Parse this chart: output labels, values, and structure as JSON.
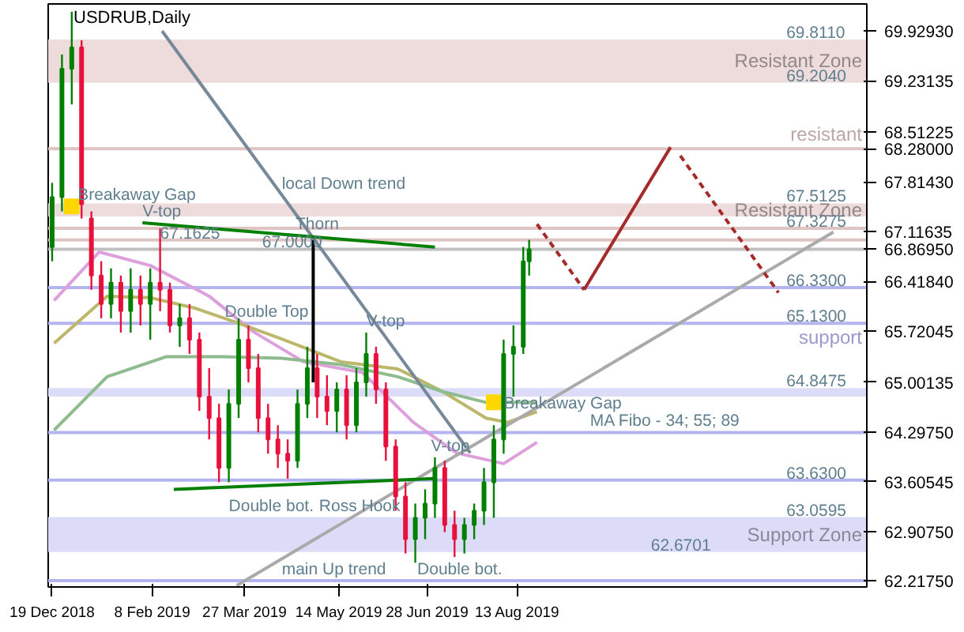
{
  "chart_data": {
    "type": "candlestick",
    "title": "USDRUB,Daily",
    "x": [
      "2018-12-19",
      "2018-12-24",
      "2018-12-29",
      "2019-01-03",
      "2019-01-08",
      "2019-01-13",
      "2019-01-18",
      "2019-01-23",
      "2019-01-28",
      "2019-02-02",
      "2019-02-07",
      "2019-02-12",
      "2019-02-17",
      "2019-02-22",
      "2019-02-27",
      "2019-03-04",
      "2019-03-09",
      "2019-03-14",
      "2019-03-19",
      "2019-03-24",
      "2019-03-29",
      "2019-04-03",
      "2019-04-08",
      "2019-04-13",
      "2019-04-18",
      "2019-04-23",
      "2019-04-28",
      "2019-05-03",
      "2019-05-08",
      "2019-05-13",
      "2019-05-18",
      "2019-05-23",
      "2019-05-28",
      "2019-06-02",
      "2019-06-07",
      "2019-06-12",
      "2019-06-17",
      "2019-06-22",
      "2019-06-27",
      "2019-07-02",
      "2019-07-07",
      "2019-07-12",
      "2019-07-17",
      "2019-07-22",
      "2019-07-27",
      "2019-08-01",
      "2019-08-06",
      "2019-08-11",
      "2019-08-16",
      "2019-08-19"
    ],
    "ohlc": [
      [
        66.9,
        67.8,
        66.7,
        67.6
      ],
      [
        67.6,
        69.6,
        67.4,
        69.4
      ],
      [
        69.4,
        70.2,
        68.9,
        69.7
      ],
      [
        69.7,
        69.8,
        67.3,
        67.5
      ],
      [
        67.3,
        67.4,
        66.3,
        66.5
      ],
      [
        66.5,
        66.7,
        65.9,
        66.1
      ],
      [
        66.1,
        66.6,
        65.9,
        66.4
      ],
      [
        66.4,
        66.5,
        65.7,
        66.0
      ],
      [
        66.0,
        66.6,
        65.7,
        66.3
      ],
      [
        66.3,
        66.5,
        65.8,
        66.1
      ],
      [
        66.1,
        66.6,
        65.6,
        66.4
      ],
      [
        66.4,
        67.16,
        66.0,
        66.3
      ],
      [
        66.3,
        66.4,
        65.7,
        65.8
      ],
      [
        65.8,
        66.1,
        65.5,
        65.9
      ],
      [
        65.9,
        66.1,
        65.4,
        65.6
      ],
      [
        65.6,
        65.7,
        64.6,
        64.8
      ],
      [
        64.8,
        65.2,
        64.2,
        64.5
      ],
      [
        64.5,
        64.7,
        63.6,
        63.8
      ],
      [
        63.8,
        64.9,
        63.6,
        64.7
      ],
      [
        64.7,
        65.9,
        64.5,
        65.6
      ],
      [
        65.6,
        65.8,
        65.0,
        65.2
      ],
      [
        65.2,
        65.4,
        64.3,
        64.5
      ],
      [
        64.5,
        64.7,
        64.0,
        64.2
      ],
      [
        64.2,
        64.4,
        63.8,
        64.0
      ],
      [
        64.0,
        64.2,
        63.65,
        63.9
      ],
      [
        63.9,
        64.9,
        63.8,
        64.7
      ],
      [
        64.7,
        65.5,
        64.5,
        65.2
      ],
      [
        65.2,
        65.4,
        64.5,
        64.8
      ],
      [
        64.8,
        65.1,
        64.4,
        64.6
      ],
      [
        64.6,
        65.0,
        64.3,
        64.9
      ],
      [
        64.9,
        65.1,
        64.2,
        64.4
      ],
      [
        64.4,
        65.2,
        64.3,
        65.0
      ],
      [
        65.0,
        65.7,
        64.8,
        65.4
      ],
      [
        65.4,
        65.5,
        64.7,
        64.9
      ],
      [
        64.9,
        65.0,
        63.9,
        64.1
      ],
      [
        64.1,
        64.2,
        63.2,
        63.4
      ],
      [
        63.4,
        63.6,
        62.6,
        62.8
      ],
      [
        62.8,
        63.3,
        62.47,
        63.1
      ],
      [
        63.1,
        63.5,
        62.8,
        63.3
      ],
      [
        63.3,
        63.95,
        63.1,
        63.8
      ],
      [
        63.8,
        63.9,
        62.9,
        63.0
      ],
      [
        63.0,
        63.2,
        62.55,
        62.8
      ],
      [
        62.8,
        63.1,
        62.6,
        63.0
      ],
      [
        63.0,
        63.3,
        62.8,
        63.2
      ],
      [
        63.2,
        63.8,
        63.0,
        63.6
      ],
      [
        63.6,
        64.4,
        63.1,
        64.2
      ],
      [
        64.2,
        65.6,
        64.0,
        65.4
      ],
      [
        65.4,
        65.8,
        64.8,
        65.5
      ],
      [
        65.5,
        66.9,
        65.4,
        66.7
      ],
      [
        66.7,
        67.0,
        66.5,
        66.8695
      ]
    ],
    "series": [
      {
        "type": "line",
        "color": "#dda0dd",
        "x": [
          "2018-12-20",
          "2019-01-12",
          "2019-02-07",
          "2019-03-09",
          "2019-03-31",
          "2019-04-26",
          "2019-05-26",
          "2019-06-21",
          "2019-07-13",
          "2019-08-06",
          "2019-08-23"
        ],
        "values": [
          66.15,
          66.83,
          66.64,
          66.21,
          65.72,
          65.29,
          65.14,
          64.44,
          64.01,
          63.86,
          64.16
        ]
      },
      {
        "type": "line",
        "color": "#bdb76b",
        "x": [
          "2018-12-20",
          "2019-01-16",
          "2019-02-07",
          "2019-03-02",
          "2019-03-24",
          "2019-04-15",
          "2019-05-15",
          "2019-06-13",
          "2019-07-06",
          "2019-07-28",
          "2019-08-08",
          "2019-08-23"
        ],
        "values": [
          65.55,
          66.21,
          66.19,
          66.04,
          65.83,
          65.61,
          65.29,
          65.19,
          64.87,
          64.5,
          64.44,
          64.59
        ]
      },
      {
        "type": "line",
        "color": "#8fbc8f",
        "x": [
          "2018-12-20",
          "2019-01-16",
          "2019-02-15",
          "2019-03-16",
          "2019-04-15",
          "2019-05-15",
          "2019-06-13",
          "2019-07-06",
          "2019-07-28",
          "2019-08-23"
        ],
        "values": [
          64.33,
          65.08,
          65.36,
          65.36,
          65.34,
          65.25,
          65.08,
          64.87,
          64.72,
          64.72
        ]
      },
      {
        "type": "line",
        "color": "#778899",
        "x": [
          "2019-02-13",
          "2019-07-20"
        ],
        "values": [
          69.93,
          64.01
        ]
      },
      {
        "type": "line",
        "color": "#aaaaaa",
        "x": [
          "2019-03-23",
          "2020-01-21"
        ],
        "values": [
          62.15,
          67.11
        ]
      },
      {
        "type": "line",
        "color": "#008000",
        "x": [
          "2019-02-03",
          "2019-07-02"
        ],
        "values": [
          67.24,
          66.9
        ]
      },
      {
        "type": "line",
        "color": "#008000",
        "x": [
          "2019-02-19",
          "2019-07-02"
        ],
        "values": [
          63.5,
          63.65
        ]
      },
      {
        "type": "line",
        "color": "#000000",
        "x": [
          "2019-05-01",
          "2019-05-01"
        ],
        "values": [
          67.0,
          65.0
        ]
      },
      {
        "type": "line",
        "color": "#a52a2a",
        "line_style": "dashed",
        "x": [
          "2019-08-23",
          "2019-09-16"
        ],
        "values": [
          67.22,
          66.3
        ]
      },
      {
        "type": "line",
        "color": "#a52a2a",
        "x": [
          "2019-09-16",
          "2019-10-30"
        ],
        "values": [
          66.3,
          68.3
        ]
      },
      {
        "type": "line",
        "color": "#a52a2a",
        "line_style": "dashed",
        "x": [
          "2019-11-04",
          "2019-12-24"
        ],
        "values": [
          68.18,
          66.26
        ]
      },
      {
        "type": "scatter",
        "marker": "square",
        "color": "#ffd700",
        "x": [
          "2018-12-29",
          "2019-08-01"
        ],
        "values": [
          67.47,
          64.72
        ]
      }
    ],
    "xlim": [
      "2018-12-17",
      "2020-02-07"
    ],
    "xticks": [
      {
        "value": "2018-12-19",
        "label": "19 Dec 2018"
      },
      {
        "value": "2019-02-08",
        "label": "8 Feb 2019"
      },
      {
        "value": "2019-03-27",
        "label": "27 Mar 2019"
      },
      {
        "value": "2019-05-14",
        "label": "14 May 2019"
      },
      {
        "value": "2019-06-28",
        "label": "28 Jun 2019"
      },
      {
        "value": "2019-08-13",
        "label": "13 Aug 2019"
      }
    ],
    "ylim": [
      62.13,
      70.31
    ],
    "yticks": [
      {
        "value": 69.9293,
        "label": "69.92930"
      },
      {
        "value": 69.23135,
        "label": "69.23135"
      },
      {
        "value": 68.51225,
        "label": "68.51225"
      },
      {
        "value": 68.28,
        "label": "68.28000"
      },
      {
        "value": 67.8143,
        "label": "67.81430"
      },
      {
        "value": 67.11635,
        "label": "67.11635"
      },
      {
        "value": 66.8695,
        "label": "66.86950"
      },
      {
        "value": 66.4184,
        "label": "66.41840"
      },
      {
        "value": 65.72045,
        "label": "65.72045"
      },
      {
        "value": 65.00135,
        "label": "65.00135"
      },
      {
        "value": 64.2975,
        "label": "64.29750"
      },
      {
        "value": 63.60545,
        "label": "63.60545"
      },
      {
        "value": 62.9075,
        "label": "62.90750"
      },
      {
        "value": 62.2175,
        "label": "62.21750"
      }
    ],
    "bands": [
      {
        "axis": "y",
        "from": 69.204,
        "to": 69.811,
        "label": "Resistant Zone",
        "color": "#eedcdc"
      },
      {
        "axis": "y",
        "from": 67.3275,
        "to": 67.5125,
        "label": "Resistant Zone",
        "color": "#eedcdc"
      },
      {
        "axis": "y",
        "from": 64.8,
        "to": 64.92,
        "color": "#dcdcf8"
      },
      {
        "axis": "y",
        "from": 62.62,
        "to": 63.11,
        "label": "Support Zone",
        "color": "#dcdcf8"
      }
    ],
    "ref_lines": [
      {
        "axis": "y",
        "value": 68.28,
        "label": "resistant",
        "color": "#e0c4c4"
      },
      {
        "axis": "y",
        "value": 67.1625,
        "color": "#e0c4c4"
      },
      {
        "axis": "y",
        "value": 67.0,
        "color": "#e0c4c4"
      },
      {
        "axis": "y",
        "value": 66.8695,
        "color": "#c0c0c0"
      },
      {
        "axis": "y",
        "value": 66.33,
        "color": "#b4b4f0"
      },
      {
        "axis": "y",
        "value": 65.83,
        "label": "support",
        "color": "#b4b4f0"
      },
      {
        "axis": "y",
        "value": 64.2975,
        "color": "#b4b4f0"
      },
      {
        "axis": "y",
        "value": 63.63,
        "color": "#b4b4f0"
      },
      {
        "axis": "y",
        "value": 62.2175,
        "color": "#b4b4f0"
      }
    ],
    "annotations": [
      {
        "text": "69.8110",
        "x": "2019-12-28",
        "y": 69.811
      },
      {
        "text": "69.2040",
        "x": "2019-12-28",
        "y": 69.204
      },
      {
        "text": "67.5125",
        "x": "2019-12-28",
        "y": 67.5125
      },
      {
        "text": "67.3275",
        "x": "2019-12-28",
        "y": 67.1625
      },
      {
        "text": "local Down trend",
        "x": "2019-04-15",
        "y": 67.63
      },
      {
        "text": "Thorn",
        "x": "2019-04-22",
        "y": 67.06
      },
      {
        "text": "V-top",
        "x": "2019-02-03",
        "y": 67.24
      },
      {
        "text": "67.1625",
        "x": "2019-02-12",
        "y": 67.0
      },
      {
        "text": "67.0000",
        "x": "2019-04-05",
        "y": 66.8695
      },
      {
        "text": "Breakaway Gap",
        "x": "2019-01-01",
        "y": 67.47
      },
      {
        "text": "66.3300",
        "x": "2019-12-28",
        "y": 66.33
      },
      {
        "text": "Double Top",
        "x": "2019-03-17",
        "y": 65.83
      },
      {
        "text": "V-top",
        "x": "2019-05-28",
        "y": 65.7
      },
      {
        "text": "65.1300",
        "x": "2019-12-28",
        "y": 65.83
      },
      {
        "text": "64.8475",
        "x": "2019-12-28",
        "y": 64.92
      },
      {
        "text": "MA Fibo - 34; 55; 89",
        "x": "2019-09-19",
        "y": 64.2975
      },
      {
        "text": "Breakaway Gap",
        "x": "2019-08-06",
        "y": 64.55
      },
      {
        "text": "V-top",
        "x": "2019-06-30",
        "y": 63.95
      },
      {
        "text": "63.6300",
        "x": "2019-12-28",
        "y": 63.63
      },
      {
        "text": "Double bot.",
        "x": "2019-03-19",
        "y": 63.11
      },
      {
        "text": "Ross Hook",
        "x": "2019-05-04",
        "y": 63.11
      },
      {
        "text": "63.0595",
        "x": "2019-12-28",
        "y": 63.11
      },
      {
        "text": "62.6701",
        "x": "2019-10-20",
        "y": 62.62
      },
      {
        "text": "main Up trend",
        "x": "2019-04-15",
        "y": 62.2175
      },
      {
        "text": "Double bot.",
        "x": "2019-06-23",
        "y": 62.2175
      }
    ]
  }
}
